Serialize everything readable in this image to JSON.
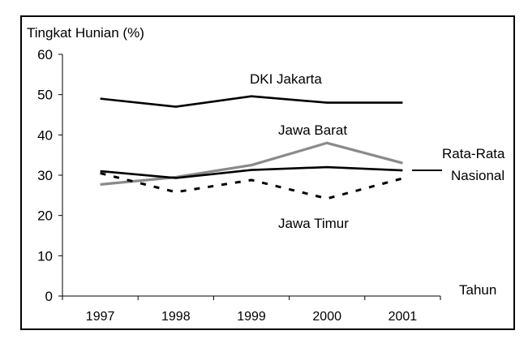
{
  "chart_data": {
    "type": "line",
    "ylabel": "Tingkat Hunian (%)",
    "xlabel": "Tahun",
    "categories": [
      "1997",
      "1998",
      "1999",
      "2000",
      "2001"
    ],
    "ylim": [
      0,
      60
    ],
    "yticks": [
      "0",
      "10",
      "20",
      "30",
      "40",
      "50",
      "60"
    ],
    "grid": false,
    "series": [
      {
        "name": "DKI Jakarta",
        "values": [
          49,
          47,
          49.6,
          48,
          48
        ],
        "color": "#000000",
        "style": "solid"
      },
      {
        "name": "Jawa Barat",
        "values": [
          27.7,
          29.5,
          32.5,
          38,
          33
        ],
        "color": "#8a8a8a",
        "style": "solid"
      },
      {
        "name": "Rata-Rata Nasional",
        "values": [
          31,
          29.3,
          31.3,
          32,
          31.2
        ],
        "color": "#000000",
        "style": "solid"
      },
      {
        "name": "Jawa Timur",
        "values": [
          30.5,
          25.8,
          28.8,
          24.2,
          29.2
        ],
        "color": "#000000",
        "style": "dashed"
      }
    ],
    "legend_label_lines": {
      "rata_rata_1": "Rata-Rata",
      "rata_rata_2": "Nasional"
    }
  }
}
